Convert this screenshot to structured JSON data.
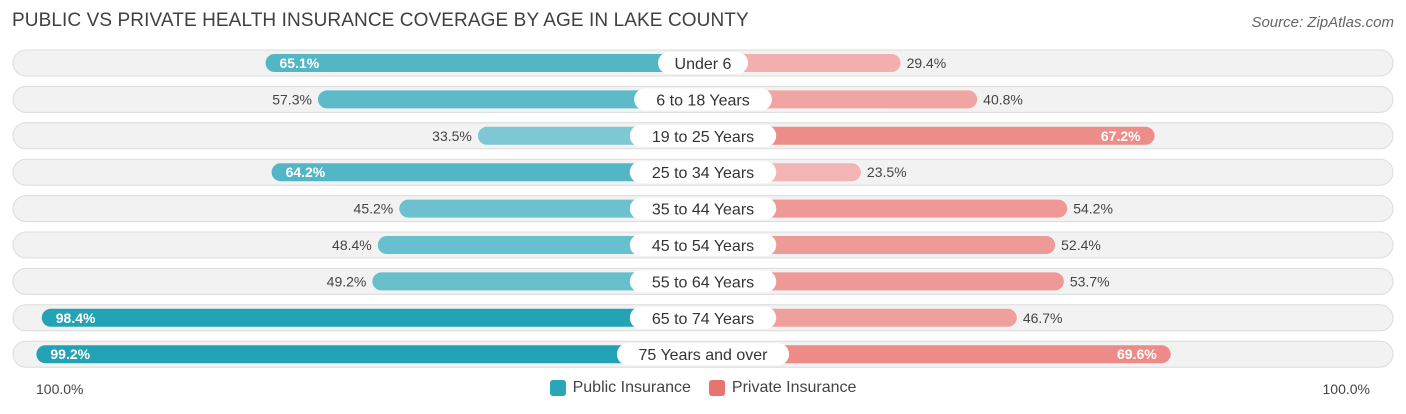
{
  "title": "PUBLIC VS PRIVATE HEALTH INSURANCE COVERAGE BY AGE IN LAKE COUNTY",
  "source": "Source: ZipAtlas.com",
  "axis": {
    "left_label": "100.0%",
    "right_label": "100.0%"
  },
  "legend": [
    {
      "name": "Public Insurance",
      "color": "#2ba5b8"
    },
    {
      "name": "Private Insurance",
      "color": "#e8736f"
    }
  ],
  "chart_data": {
    "type": "bar",
    "orientation": "diverging-horizontal",
    "categories": [
      "Under 6",
      "6 to 18 Years",
      "19 to 25 Years",
      "25 to 34 Years",
      "35 to 44 Years",
      "45 to 54 Years",
      "55 to 64 Years",
      "65 to 74 Years",
      "75 Years and over"
    ],
    "series": [
      {
        "name": "Public Insurance",
        "values": [
          65.1,
          57.3,
          33.5,
          64.2,
          45.2,
          48.4,
          49.2,
          98.4,
          99.2
        ],
        "labels": [
          "65.1%",
          "57.3%",
          "33.5%",
          "64.2%",
          "45.2%",
          "48.4%",
          "49.2%",
          "98.4%",
          "99.2%"
        ]
      },
      {
        "name": "Private Insurance",
        "values": [
          29.4,
          40.8,
          67.2,
          23.5,
          54.2,
          52.4,
          53.7,
          46.7,
          69.6
        ],
        "labels": [
          "29.4%",
          "40.8%",
          "67.2%",
          "23.5%",
          "54.2%",
          "52.4%",
          "53.7%",
          "46.7%",
          "69.6%"
        ]
      }
    ],
    "xlim": [
      0,
      100
    ],
    "legend_position": "bottom-center"
  }
}
